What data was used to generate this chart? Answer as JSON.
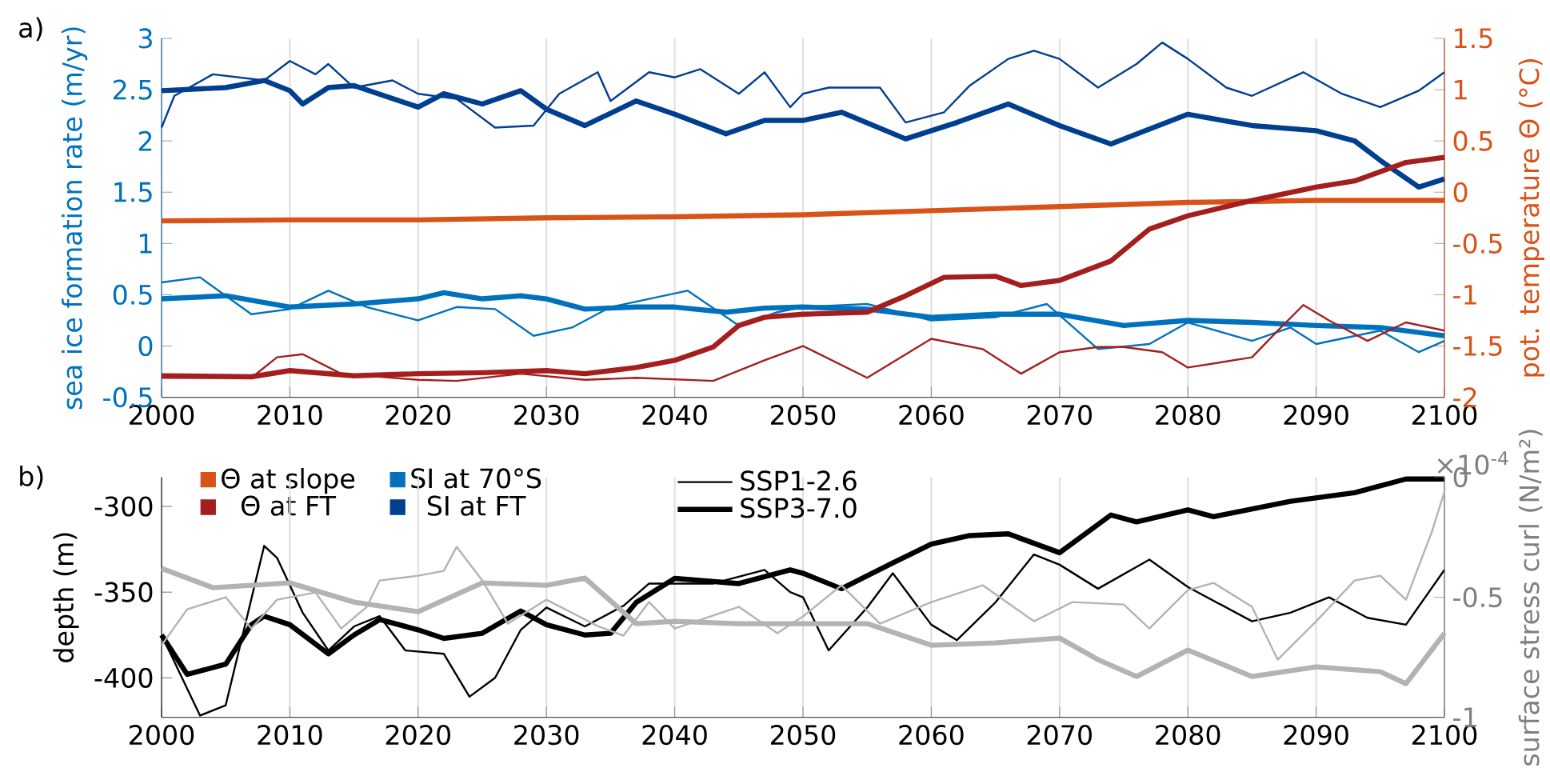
{
  "chart_data": [
    {
      "type": "line",
      "title": "a)",
      "ylabel": "sea ice formation rate (m/yr)",
      "y2label": "pot. temperature Θ (°C)",
      "xlim": [
        2000,
        2100
      ],
      "xticks": [
        2000,
        2010,
        2020,
        2030,
        2040,
        2050,
        2060,
        2070,
        2080,
        2090,
        2100
      ],
      "ylim": [
        -0.5,
        3
      ],
      "yticks": [
        -0.5,
        0,
        0.5,
        1,
        1.5,
        2,
        2.5,
        3
      ],
      "y2lim": [
        -2,
        1.5
      ],
      "y2ticks": [
        -2,
        -1.5,
        -1,
        -0.5,
        0,
        0.5,
        1,
        1.5
      ],
      "grid": "x",
      "legend": "bottom",
      "series": [
        {
          "name": "Θ at slope",
          "color": "#d95319",
          "axis": "y2",
          "x": [
            2000,
            2010,
            2020,
            2030,
            2040,
            2050,
            2060,
            2070,
            2080,
            2090,
            2100
          ],
          "values": [
            -0.28,
            -0.27,
            -0.27,
            -0.25,
            -0.24,
            -0.22,
            -0.18,
            -0.14,
            -0.1,
            -0.08,
            -0.08
          ]
        },
        {
          "color": "#a51e1e",
          "axis": "y2",
          "x": [
            2000,
            2007,
            2009,
            2011,
            2014,
            2020,
            2023,
            2028,
            2033,
            2037,
            2043,
            2047,
            2050,
            2055,
            2060,
            2064,
            2067,
            2070,
            2073,
            2075,
            2078,
            2080,
            2085,
            2087,
            2089,
            2091,
            2094,
            2097,
            2100
          ],
          "values": [
            -1.81,
            -1.81,
            -1.61,
            -1.58,
            -1.77,
            -1.83,
            -1.84,
            -1.77,
            -1.83,
            -1.81,
            -1.84,
            -1.64,
            -1.5,
            -1.81,
            -1.43,
            -1.53,
            -1.77,
            -1.56,
            -1.51,
            -1.51,
            -1.56,
            -1.71,
            -1.61,
            -1.35,
            -1.1,
            -1.25,
            -1.45,
            -1.27,
            -1.35
          ]
        },
        {
          "name": "Θ at FT",
          "color": "#a51e1e",
          "axis": "y2",
          "x": [
            2000,
            2007,
            2010,
            2015,
            2020,
            2025,
            2030,
            2033,
            2037,
            2040,
            2043,
            2045,
            2047,
            2050,
            2055,
            2058,
            2061,
            2065,
            2067,
            2070,
            2074,
            2077,
            2080,
            2085,
            2090,
            2093,
            2097,
            2100
          ],
          "values": [
            -1.79,
            -1.8,
            -1.74,
            -1.79,
            -1.77,
            -1.76,
            -1.74,
            -1.77,
            -1.71,
            -1.64,
            -1.51,
            -1.3,
            -1.22,
            -1.19,
            -1.17,
            -1.01,
            -0.83,
            -0.82,
            -0.91,
            -0.86,
            -0.67,
            -0.36,
            -0.23,
            -0.08,
            0.05,
            0.11,
            0.29,
            0.34
          ]
        },
        {
          "color": "#0072bd",
          "x": [
            2000,
            2003,
            2007,
            2010,
            2013,
            2016,
            2020,
            2023,
            2026,
            2029,
            2032,
            2035,
            2041,
            2045,
            2048,
            2050,
            2055,
            2060,
            2065,
            2069,
            2073,
            2077,
            2080,
            2085,
            2088,
            2090,
            2095,
            2098,
            2100
          ],
          "values": [
            0.62,
            0.67,
            0.31,
            0.36,
            0.54,
            0.38,
            0.25,
            0.38,
            0.36,
            0.1,
            0.18,
            0.38,
            0.54,
            0.2,
            0.33,
            0.38,
            0.41,
            0.25,
            0.28,
            0.41,
            -0.03,
            0.02,
            0.23,
            0.05,
            0.18,
            0.02,
            0.15,
            -0.06,
            0.05
          ]
        },
        {
          "name": "SI at 70°S",
          "color": "#0072bd",
          "x": [
            2000,
            2005,
            2010,
            2015,
            2020,
            2022,
            2025,
            2028,
            2030,
            2033,
            2037,
            2040,
            2044,
            2047,
            2050,
            2055,
            2060,
            2065,
            2070,
            2075,
            2080,
            2085,
            2090,
            2095,
            2100
          ],
          "values": [
            0.46,
            0.49,
            0.38,
            0.41,
            0.46,
            0.52,
            0.46,
            0.49,
            0.46,
            0.36,
            0.38,
            0.38,
            0.33,
            0.37,
            0.38,
            0.36,
            0.28,
            0.31,
            0.31,
            0.2,
            0.25,
            0.23,
            0.2,
            0.18,
            0.1
          ]
        },
        {
          "color": "#003f8f",
          "x": [
            2000,
            2001,
            2004,
            2008,
            2010,
            2012,
            2013,
            2015,
            2018,
            2020,
            2023,
            2026,
            2029,
            2031,
            2034,
            2035,
            2038,
            2040,
            2042,
            2045,
            2047,
            2049,
            2050,
            2052,
            2056,
            2058,
            2061,
            2063,
            2066,
            2068,
            2070,
            2073,
            2076,
            2078,
            2080,
            2083,
            2085,
            2089,
            2092,
            2095,
            2098,
            2100
          ],
          "values": [
            2.13,
            2.44,
            2.65,
            2.59,
            2.78,
            2.65,
            2.75,
            2.52,
            2.59,
            2.46,
            2.41,
            2.13,
            2.15,
            2.46,
            2.67,
            2.39,
            2.67,
            2.62,
            2.7,
            2.46,
            2.67,
            2.33,
            2.46,
            2.52,
            2.52,
            2.18,
            2.28,
            2.54,
            2.8,
            2.88,
            2.8,
            2.52,
            2.75,
            2.96,
            2.8,
            2.52,
            2.44,
            2.67,
            2.46,
            2.33,
            2.49,
            2.67
          ]
        },
        {
          "name": "SI at FT",
          "color": "#003f8f",
          "x": [
            2000,
            2005,
            2008,
            2010,
            2011,
            2013,
            2015,
            2020,
            2022,
            2025,
            2028,
            2030,
            2033,
            2037,
            2040,
            2044,
            2047,
            2050,
            2053,
            2058,
            2062,
            2066,
            2070,
            2074,
            2080,
            2085,
            2090,
            2093,
            2095,
            2098,
            2100
          ],
          "values": [
            2.49,
            2.52,
            2.59,
            2.49,
            2.36,
            2.52,
            2.54,
            2.33,
            2.46,
            2.36,
            2.49,
            2.31,
            2.15,
            2.39,
            2.26,
            2.07,
            2.2,
            2.2,
            2.28,
            2.02,
            2.18,
            2.36,
            2.15,
            1.97,
            2.26,
            2.15,
            2.1,
            2.0,
            1.81,
            1.55,
            1.63
          ]
        }
      ]
    },
    {
      "type": "line",
      "title": "b)",
      "ylabel": "depth (m)",
      "y2label": "surface stress curl (N/m²)",
      "annotations": [
        "×10$^{-4}$"
      ],
      "xlim": [
        2000,
        2100
      ],
      "xticks": [
        2000,
        2010,
        2020,
        2030,
        2040,
        2050,
        2060,
        2070,
        2080,
        2090,
        2100
      ],
      "ylim": [
        -423,
        -283
      ],
      "yticks": [
        -400,
        -350,
        -300
      ],
      "y2lim": [
        -1,
        0
      ],
      "y2ticks": [
        -1,
        -0.5,
        0
      ],
      "grid": "x",
      "legend": "top",
      "series": [
        {
          "name": "SSP1-2.6",
          "color": "#000000",
          "x": [
            2000,
            2003,
            2005,
            2008,
            2009,
            2011,
            2013,
            2015,
            2017,
            2019,
            2022,
            2024,
            2026,
            2028,
            2030,
            2033,
            2036,
            2038,
            2040,
            2043,
            2047,
            2049,
            2050,
            2052,
            2055,
            2057,
            2060,
            2062,
            2065,
            2068,
            2070,
            2073,
            2077,
            2080,
            2085,
            2088,
            2091,
            2094,
            2097,
            2100
          ],
          "values": [
            -375,
            -422,
            -416,
            -323,
            -330,
            -362,
            -384,
            -370,
            -364,
            -384,
            -386,
            -411,
            -400,
            -372,
            -359,
            -370,
            -358,
            -345,
            -345,
            -345,
            -337,
            -350,
            -353,
            -384,
            -359,
            -339,
            -369,
            -378,
            -356,
            -328,
            -334,
            -348,
            -331,
            -347,
            -367,
            -362,
            -353,
            -365,
            -369,
            -337
          ]
        },
        {
          "name": "SSP3-7.0",
          "color": "#000000",
          "x": [
            2000,
            2002,
            2005,
            2007,
            2008,
            2010,
            2013,
            2015,
            2017,
            2020,
            2022,
            2025,
            2028,
            2030,
            2033,
            2035,
            2037,
            2040,
            2045,
            2049,
            2050,
            2053,
            2057,
            2060,
            2063,
            2066,
            2070,
            2074,
            2076,
            2080,
            2082,
            2088,
            2093,
            2097,
            2100
          ],
          "values": [
            -375,
            -398,
            -392,
            -369,
            -364,
            -369,
            -386,
            -375,
            -366,
            -372,
            -377,
            -374,
            -361,
            -369,
            -375,
            -374,
            -356,
            -342,
            -345,
            -337,
            -339,
            -348,
            -333,
            -322,
            -317,
            -316,
            -327,
            -305,
            -309,
            -302,
            -306,
            -297,
            -292,
            -284,
            -284
          ]
        },
        {
          "color": "#b3b3b3",
          "axis": "y2",
          "x": [
            2000,
            2002,
            2005,
            2007,
            2009,
            2012,
            2014,
            2016,
            2017,
            2020,
            2022,
            2023,
            2025,
            2027,
            2030,
            2034,
            2036,
            2038,
            2040,
            2045,
            2048,
            2050,
            2053,
            2056,
            2060,
            2064,
            2068,
            2071,
            2075,
            2077,
            2080,
            2082,
            2085,
            2087,
            2090,
            2093,
            2095,
            2097,
            2099,
            2100
          ],
          "values": [
            -0.7,
            -0.55,
            -0.5,
            -0.63,
            -0.51,
            -0.48,
            -0.63,
            -0.54,
            -0.43,
            -0.41,
            -0.39,
            -0.29,
            -0.43,
            -0.61,
            -0.51,
            -0.62,
            -0.66,
            -0.52,
            -0.63,
            -0.54,
            -0.65,
            -0.58,
            -0.45,
            -0.61,
            -0.52,
            -0.45,
            -0.6,
            -0.52,
            -0.53,
            -0.63,
            -0.47,
            -0.44,
            -0.54,
            -0.76,
            -0.6,
            -0.43,
            -0.41,
            -0.51,
            -0.23,
            -0.06
          ]
        },
        {
          "color": "#b3b3b3",
          "axis": "y2",
          "x": [
            2000,
            2004,
            2010,
            2015,
            2020,
            2025,
            2030,
            2033,
            2037,
            2040,
            2045,
            2050,
            2055,
            2060,
            2065,
            2070,
            2073,
            2076,
            2080,
            2085,
            2090,
            2095,
            2097,
            2100
          ],
          "values": [
            -0.38,
            -0.46,
            -0.44,
            -0.52,
            -0.56,
            -0.44,
            -0.45,
            -0.42,
            -0.61,
            -0.6,
            -0.61,
            -0.61,
            -0.61,
            -0.7,
            -0.69,
            -0.67,
            -0.76,
            -0.83,
            -0.72,
            -0.83,
            -0.79,
            -0.81,
            -0.86,
            -0.65
          ]
        }
      ]
    }
  ]
}
